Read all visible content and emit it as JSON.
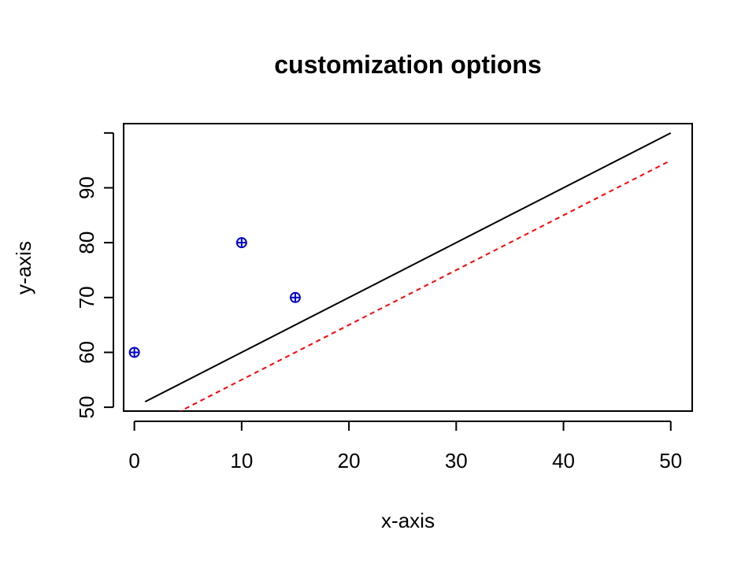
{
  "chart_data": {
    "type": "scatter",
    "title": "customization options",
    "xlabel": "x-axis",
    "ylabel": "y-axis",
    "xlim": [
      -1,
      52
    ],
    "ylim": [
      49.3,
      101.7
    ],
    "x_ticks": [
      0,
      10,
      20,
      30,
      40,
      50
    ],
    "y_ticks": [
      50,
      60,
      70,
      80,
      90
    ],
    "grid": false,
    "points": {
      "marker": "circle-plus",
      "color": "#0000cd",
      "x": [
        0,
        10,
        15
      ],
      "y": [
        60,
        80,
        70
      ]
    },
    "lines": [
      {
        "style": "solid",
        "color": "#000000",
        "x": [
          1,
          50
        ],
        "y": [
          51,
          100
        ]
      },
      {
        "style": "dashed",
        "color": "#ff0000",
        "x": [
          4,
          50
        ],
        "y": [
          49,
          95
        ]
      }
    ]
  }
}
